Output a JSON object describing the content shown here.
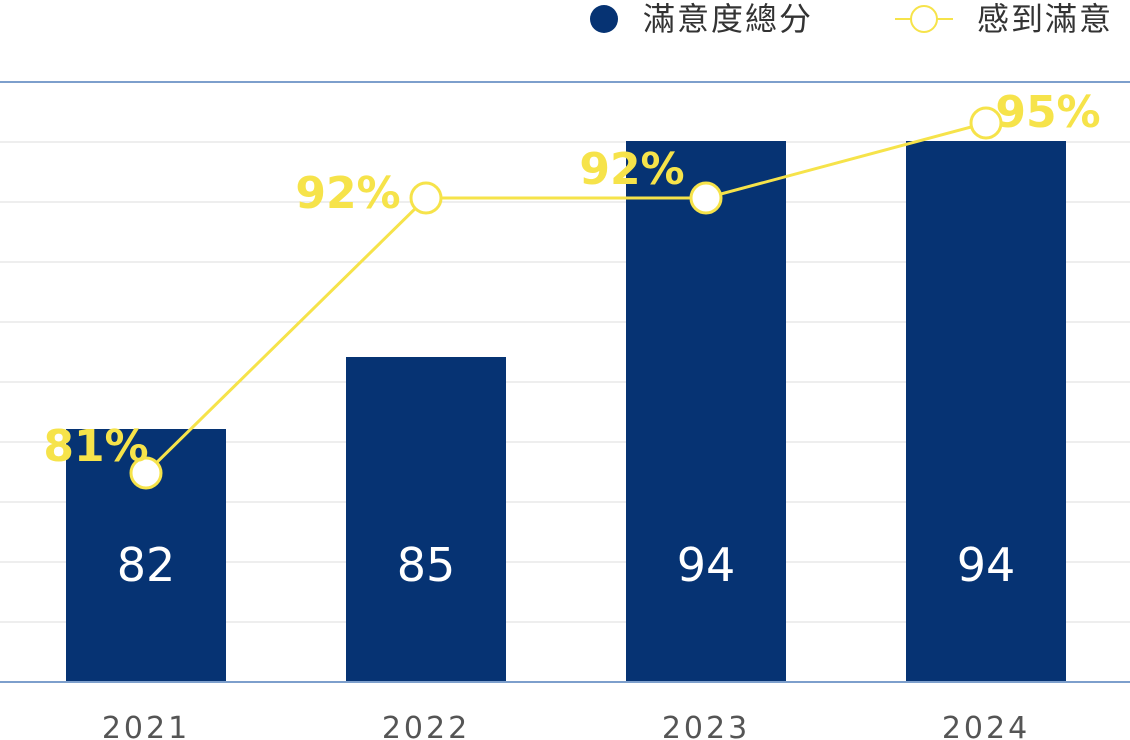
{
  "colors": {
    "bar": "#063373",
    "line": "#F6E34A",
    "grid": "#dcdcdc",
    "axis": "#7d9fcc"
  },
  "legend": {
    "bar_label": "滿意度總分",
    "line_label": "感到滿意"
  },
  "chart_data": {
    "type": "bar",
    "categories": [
      "2021",
      "2022",
      "2023",
      "2024"
    ],
    "series": [
      {
        "name": "滿意度總分",
        "type": "bar",
        "values": [
          82,
          85,
          94,
          94
        ],
        "labels": [
          "82",
          "85",
          "94",
          "94"
        ]
      },
      {
        "name": "感到滿意",
        "type": "line",
        "values": [
          81,
          92,
          92,
          95
        ],
        "labels": [
          "81%",
          "92%",
          "92%",
          "95%"
        ]
      }
    ],
    "title": "",
    "xlabel": "",
    "ylabel": "",
    "grid": true,
    "legend_position": "top-right"
  }
}
